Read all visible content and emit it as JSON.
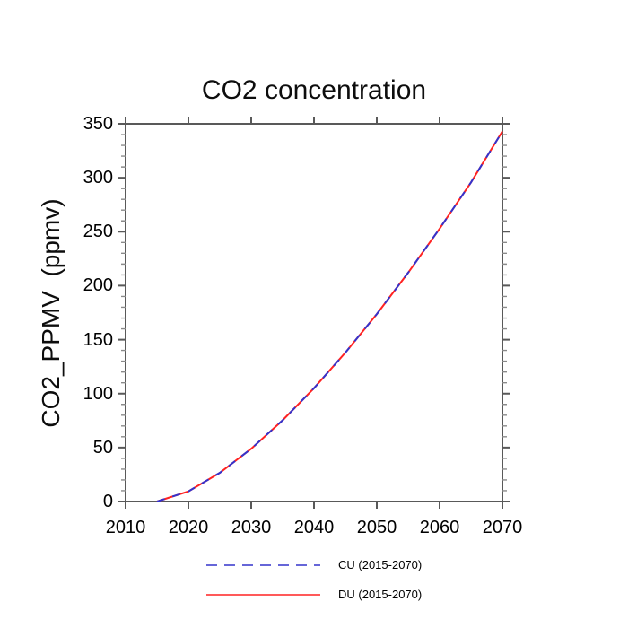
{
  "chart_data": {
    "type": "line",
    "title": "CO2 concentration",
    "xlabel": "",
    "ylabel": "CO2_PPMV  (ppmv)",
    "x": [
      2015,
      2020,
      2025,
      2030,
      2035,
      2040,
      2045,
      2050,
      2055,
      2060,
      2065,
      2070
    ],
    "series": [
      {
        "name": "CU (2015-2070)",
        "color": "#3333cc",
        "line_style": "dashed",
        "values": [
          0,
          9.4,
          26.6,
          48.9,
          75.2,
          105.0,
          138.0,
          173.7,
          212.1,
          252.8,
          295.7,
          343.0
        ]
      },
      {
        "name": "DU (2015-2070)",
        "color": "#ff2222",
        "line_style": "solid",
        "values": [
          0,
          9.4,
          26.6,
          48.9,
          75.2,
          105.0,
          138.0,
          173.7,
          212.1,
          252.8,
          295.7,
          343.0
        ]
      }
    ],
    "xlim": [
      2010,
      2070
    ],
    "ylim": [
      0,
      350
    ],
    "xticks": [
      2010,
      2020,
      2030,
      2040,
      2050,
      2060,
      2070
    ],
    "yticks": [
      0,
      50,
      100,
      150,
      200,
      250,
      300,
      350
    ],
    "y_minor_step": 10,
    "grid": false,
    "legend_position": "bottom-center",
    "axis_color": "#595959",
    "minor_tick_color": "#8a8a8a",
    "text_color": "#000000"
  }
}
